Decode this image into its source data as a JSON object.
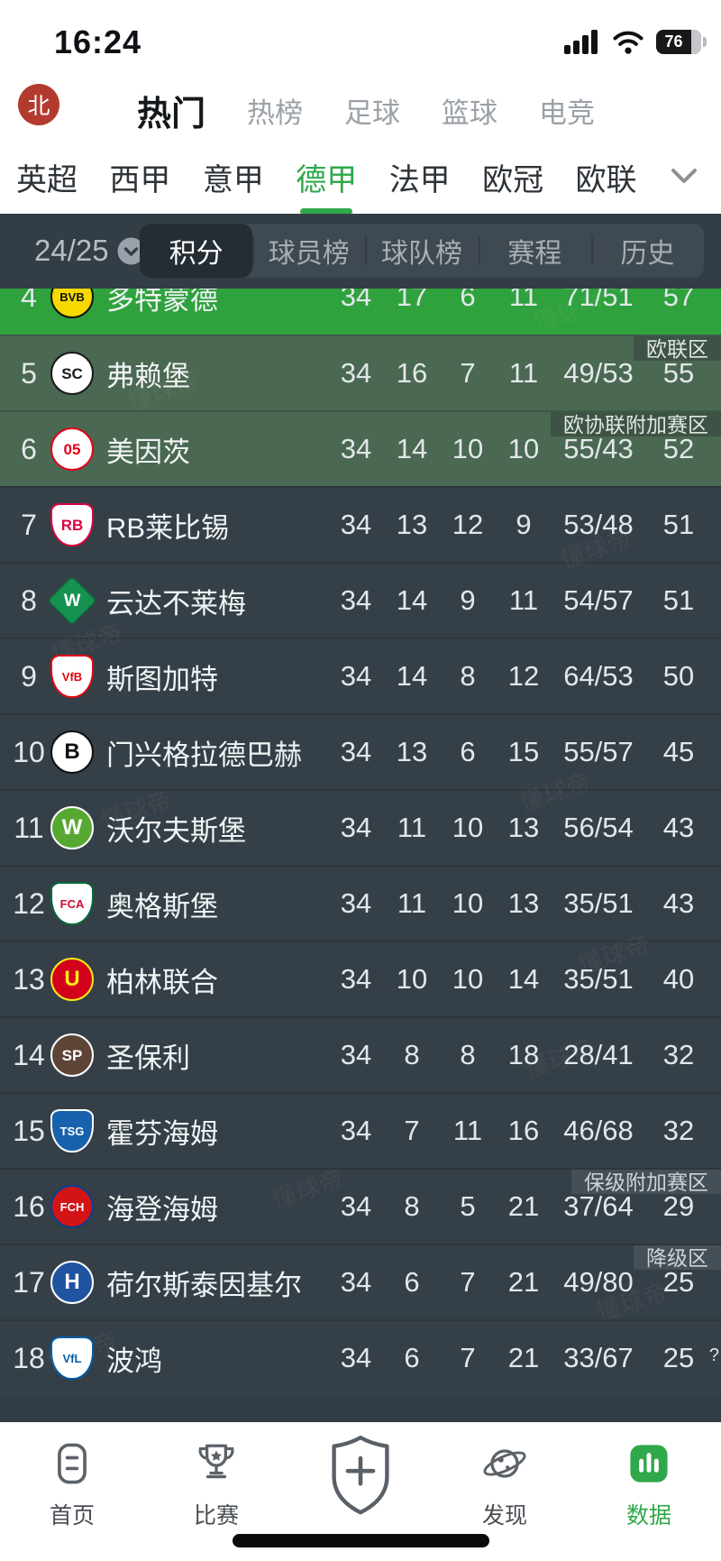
{
  "status_bar": {
    "time": "16:24",
    "battery_percent": "76"
  },
  "header": {
    "badge": "北",
    "tabs": [
      {
        "label": "热门",
        "active": true
      },
      {
        "label": "热榜",
        "active": false
      },
      {
        "label": "足球",
        "active": false
      },
      {
        "label": "篮球",
        "active": false
      },
      {
        "label": "电竞",
        "active": false
      }
    ]
  },
  "league_nav": {
    "items": [
      {
        "label": "英超",
        "active": false
      },
      {
        "label": "西甲",
        "active": false
      },
      {
        "label": "意甲",
        "active": false
      },
      {
        "label": "德甲",
        "active": true
      },
      {
        "label": "法甲",
        "active": false
      },
      {
        "label": "欧冠",
        "active": false
      },
      {
        "label": "欧联",
        "active": false
      }
    ],
    "expander_icon": "chevron-down-icon"
  },
  "season_bar": {
    "season": "24/25",
    "tabs": [
      {
        "label": "积分",
        "active": true
      },
      {
        "label": "球员榜",
        "active": false
      },
      {
        "label": "球队榜",
        "active": false
      },
      {
        "label": "赛程",
        "active": false
      },
      {
        "label": "历史",
        "active": false
      }
    ]
  },
  "table": {
    "rows": [
      {
        "rank": 4,
        "team": "多特蒙德",
        "played": 34,
        "win": 17,
        "draw": 6,
        "loss": 11,
        "goals": "71/51",
        "points": 57,
        "zone": "cl",
        "zone_label": null,
        "logo": {
          "shape": "circle",
          "bg": "#f6d900",
          "ring": "#111111",
          "fg": "#111111",
          "text": "BVB"
        }
      },
      {
        "rank": 5,
        "team": "弗赖堡",
        "played": 34,
        "win": 16,
        "draw": 7,
        "loss": 11,
        "goals": "49/53",
        "points": 55,
        "zone": "el",
        "zone_label": "欧联区",
        "logo": {
          "shape": "circle",
          "bg": "#ffffff",
          "ring": "#1a1a1a",
          "fg": "#1a1a1a",
          "text": "SC"
        }
      },
      {
        "rank": 6,
        "team": "美因茨",
        "played": 34,
        "win": 14,
        "draw": 10,
        "loss": 10,
        "goals": "55/43",
        "points": 52,
        "zone": "ecl",
        "zone_label": "欧协联附加赛区",
        "logo": {
          "shape": "circle",
          "bg": "#ffffff",
          "ring": "#e2001a",
          "fg": "#e2001a",
          "text": "05"
        }
      },
      {
        "rank": 7,
        "team": "RB莱比锡",
        "played": 34,
        "win": 13,
        "draw": 12,
        "loss": 9,
        "goals": "53/48",
        "points": 51,
        "zone": null,
        "zone_label": null,
        "logo": {
          "shape": "shield",
          "bg": "#ffffff",
          "ring": "#dd013f",
          "fg": "#dd013f",
          "text": "RB"
        }
      },
      {
        "rank": 8,
        "team": "云达不莱梅",
        "played": 34,
        "win": 14,
        "draw": 9,
        "loss": 11,
        "goals": "54/57",
        "points": 51,
        "zone": null,
        "zone_label": null,
        "logo": {
          "shape": "diamond",
          "bg": "#169152",
          "ring": "#0d6b3c",
          "fg": "#ffffff",
          "text": "W"
        }
      },
      {
        "rank": 9,
        "team": "斯图加特",
        "played": 34,
        "win": 14,
        "draw": 8,
        "loss": 12,
        "goals": "64/53",
        "points": 50,
        "zone": null,
        "zone_label": null,
        "logo": {
          "shape": "shield",
          "bg": "#ffffff",
          "ring": "#e30613",
          "fg": "#e30613",
          "text": "VfB"
        }
      },
      {
        "rank": 10,
        "team": "门兴格拉德巴赫",
        "played": 34,
        "win": 13,
        "draw": 6,
        "loss": 15,
        "goals": "55/57",
        "points": 45,
        "zone": null,
        "zone_label": null,
        "logo": {
          "shape": "circle",
          "bg": "#ffffff",
          "ring": "#111111",
          "fg": "#111111",
          "text": "B"
        }
      },
      {
        "rank": 11,
        "team": "沃尔夫斯堡",
        "played": 34,
        "win": 11,
        "draw": 10,
        "loss": 13,
        "goals": "56/54",
        "points": 43,
        "zone": null,
        "zone_label": null,
        "logo": {
          "shape": "circle",
          "bg": "#57a833",
          "ring": "#ffffff",
          "fg": "#ffffff",
          "text": "W"
        }
      },
      {
        "rank": 12,
        "team": "奥格斯堡",
        "played": 34,
        "win": 11,
        "draw": 10,
        "loss": 13,
        "goals": "35/51",
        "points": 43,
        "zone": null,
        "zone_label": null,
        "logo": {
          "shape": "shield",
          "bg": "#ffffff",
          "ring": "#046a38",
          "fg": "#c8102e",
          "text": "FCA"
        }
      },
      {
        "rank": 13,
        "team": "柏林联合",
        "played": 34,
        "win": 10,
        "draw": 10,
        "loss": 14,
        "goals": "35/51",
        "points": 40,
        "zone": null,
        "zone_label": null,
        "logo": {
          "shape": "circle",
          "bg": "#d4011d",
          "ring": "#f6eb16",
          "fg": "#f6eb16",
          "text": "U"
        }
      },
      {
        "rank": 14,
        "team": "圣保利",
        "played": 34,
        "win": 8,
        "draw": 8,
        "loss": 18,
        "goals": "28/41",
        "points": 32,
        "zone": null,
        "zone_label": null,
        "logo": {
          "shape": "circle",
          "bg": "#5e4437",
          "ring": "#ffffff",
          "fg": "#ffffff",
          "text": "SP"
        }
      },
      {
        "rank": 15,
        "team": "霍芬海姆",
        "played": 34,
        "win": 7,
        "draw": 11,
        "loss": 16,
        "goals": "46/68",
        "points": 32,
        "zone": null,
        "zone_label": null,
        "logo": {
          "shape": "shield",
          "bg": "#1861ac",
          "ring": "#ffffff",
          "fg": "#ffffff",
          "text": "TSG"
        }
      },
      {
        "rank": 16,
        "team": "海登海姆",
        "played": 34,
        "win": 8,
        "draw": 5,
        "loss": 21,
        "goals": "37/64",
        "points": 29,
        "zone": "rpo",
        "zone_label": "保级附加赛区",
        "logo": {
          "shape": "circle",
          "bg": "#d31417",
          "ring": "#003f8f",
          "fg": "#ffffff",
          "text": "FCH"
        }
      },
      {
        "rank": 17,
        "team": "荷尔斯泰因基尔",
        "played": 34,
        "win": 6,
        "draw": 7,
        "loss": 21,
        "goals": "49/80",
        "points": 25,
        "zone": "rel",
        "zone_label": "降级区",
        "logo": {
          "shape": "circle",
          "bg": "#2053a0",
          "ring": "#ffffff",
          "fg": "#ffffff",
          "text": "H"
        }
      },
      {
        "rank": 18,
        "team": "波鸿",
        "played": 34,
        "win": 6,
        "draw": 7,
        "loss": 21,
        "goals": "33/67",
        "points": 25,
        "zone": "rel",
        "zone_label": null,
        "points_note": "?",
        "logo": {
          "shape": "shield",
          "bg": "#ffffff",
          "ring": "#005ba5",
          "fg": "#005ba5",
          "text": "VfL"
        }
      }
    ]
  },
  "bottom_nav": {
    "items": [
      {
        "label": "首页",
        "icon": "home-icon",
        "active": false
      },
      {
        "label": "比赛",
        "icon": "trophy-icon",
        "active": false
      },
      {
        "label": "",
        "icon": "add-shield-icon",
        "active": false
      },
      {
        "label": "发现",
        "icon": "planet-icon",
        "active": false
      },
      {
        "label": "数据",
        "icon": "bar-chart-icon",
        "active": true
      }
    ]
  },
  "watermark": "懂球帝",
  "colors": {
    "accent_green": "#2fa84b",
    "row_highlight_green": "#2fa23d",
    "row_zone_green": "#4a6852",
    "dark_bg": "#333d45",
    "row_bg": "#353f47",
    "segment_bg": "#3f4951",
    "segment_active_bg": "#242d34",
    "badge_on_dark": "#454f57",
    "badge_on_green": "#3d5345"
  }
}
